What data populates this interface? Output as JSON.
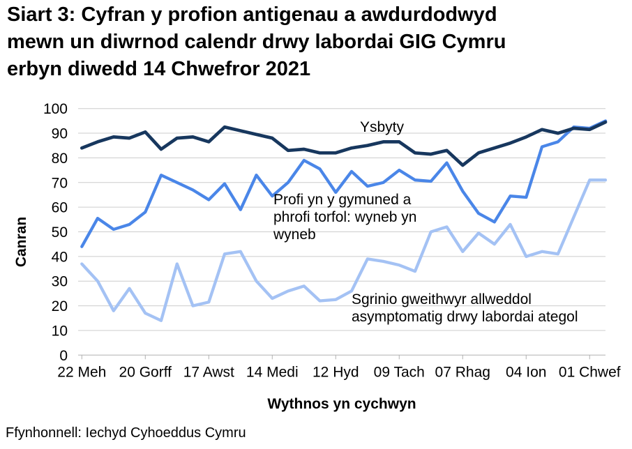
{
  "title": "Siart 3: Cyfran y profion antigenau a awdurdodwyd\nmewn un diwrnod calendr drwy labordai GIG Cymru\nerbyn diwedd 14 Chwefror 2021",
  "footer": "Ffynhonnell: Iechyd Cyhoeddus Cymru",
  "colors": {
    "grid": "#cccccc",
    "axis": "#b0b0b0",
    "text": "#000000",
    "background": "#ffffff"
  },
  "chart_data": {
    "type": "line",
    "title": "Siart 3: Cyfran y profion antigenau a awdurdodwyd mewn un diwrnod calendr drwy labordai GIG Cymru erbyn diwedd 14 Chwefror 2021",
    "xlabel": "Wythnos yn cychwyn",
    "ylabel": "Canran",
    "ylim": [
      0,
      100
    ],
    "ytick_step": 10,
    "grid": true,
    "legend_position": "inline-annotations",
    "n_points": 34,
    "x_tick_labels": [
      "22 Meh",
      "20 Gorff",
      "17 Awst",
      "14 Medi",
      "12 Hyd",
      "09 Tach",
      "07 Rhag",
      "04 Ion",
      "01 Chwef"
    ],
    "x_tick_indices": [
      0,
      4,
      8,
      12,
      16,
      20,
      24,
      28,
      32
    ],
    "series": [
      {
        "name": "Ysbyty",
        "color": "#17375E",
        "stroke_width": 4.7,
        "values": [
          84,
          86.5,
          88.5,
          88,
          90.5,
          83.5,
          88,
          88.5,
          86.5,
          92.5,
          91,
          89.5,
          88,
          83,
          83.5,
          82,
          82,
          84,
          85,
          86.5,
          86.5,
          82,
          81.5,
          83,
          77,
          82,
          84,
          86,
          88.5,
          91.5,
          90,
          92,
          91.5,
          94.5
        ]
      },
      {
        "name": "Profi yn y gymuned a phrofi torfol: wyneb yn wyneb",
        "color": "#4A86E8",
        "stroke_width": 4.3,
        "values": [
          44,
          55.5,
          51,
          53,
          58,
          73,
          70,
          67,
          63,
          69.5,
          59,
          73,
          64.5,
          70,
          79,
          75.5,
          66,
          74.5,
          68.5,
          70,
          75,
          71,
          70.5,
          78,
          66.5,
          57.5,
          54,
          64.5,
          64,
          84.5,
          86.5,
          92.5,
          92,
          95
        ]
      },
      {
        "name": "Sgrinio gweithwyr allweddol asymptomatig drwy labordai ategol",
        "color": "#A4C2F4",
        "stroke_width": 4.3,
        "values": [
          37,
          30,
          18,
          27,
          17,
          14,
          37,
          20,
          21.5,
          41,
          42,
          30,
          23,
          26,
          28,
          22,
          22.5,
          26,
          39,
          38,
          36.5,
          34,
          50,
          52,
          42,
          49.5,
          45,
          53,
          40,
          42,
          41,
          56,
          71,
          71
        ]
      }
    ],
    "annotations": [
      {
        "text": "Ysbyty"
      },
      {
        "text": "Profi yn y gymuned a\nphrofi torfol: wyneb yn\nwyneb"
      },
      {
        "text": "Sgrinio gweithwyr allweddol\nasymptomatig drwy labordai ategol"
      }
    ]
  }
}
